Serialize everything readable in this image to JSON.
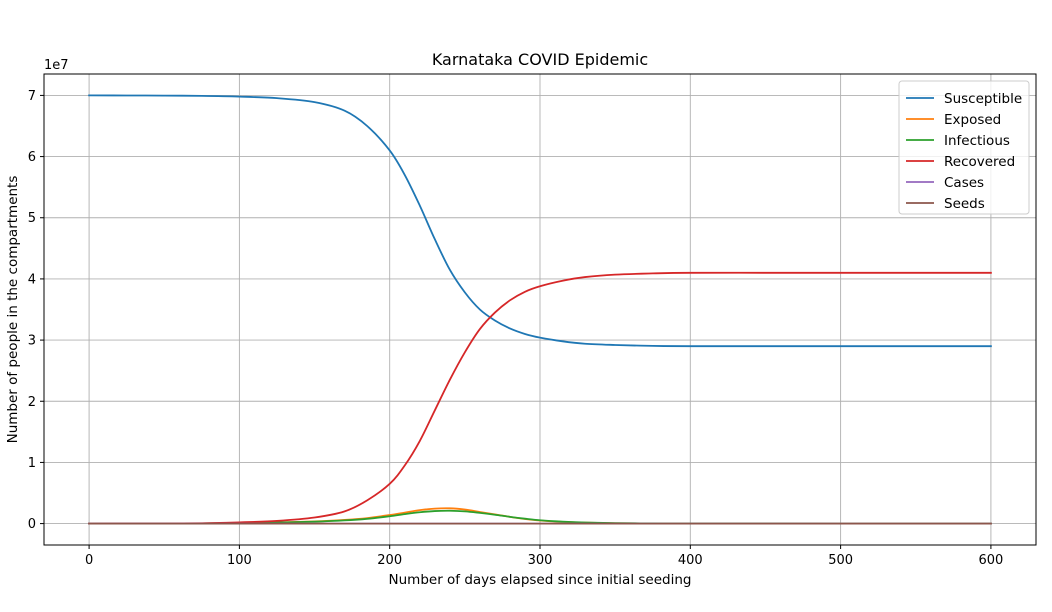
{
  "chart_data": {
    "type": "line",
    "title": "Karnataka COVID Epidemic",
    "xlabel": "Number of days elapsed since initial seeding",
    "ylabel": "Number of people in the compartments",
    "y_offset_label": "1e7",
    "y_scale": 10000000,
    "xlim": [
      -30,
      630
    ],
    "ylim": [
      -3500000,
      73500000
    ],
    "x_ticks": [
      0,
      100,
      200,
      300,
      400,
      500,
      600
    ],
    "x_tick_labels": [
      "0",
      "100",
      "200",
      "300",
      "400",
      "500",
      "600"
    ],
    "y_ticks": [
      0,
      10000000,
      20000000,
      30000000,
      40000000,
      50000000,
      60000000,
      70000000
    ],
    "y_tick_labels": [
      "0",
      "1",
      "2",
      "3",
      "4",
      "5",
      "6",
      "7"
    ],
    "grid": true,
    "legend_position": "top-right",
    "x": [
      0,
      25,
      50,
      75,
      100,
      125,
      150,
      170,
      185,
      200,
      210,
      220,
      230,
      240,
      250,
      260,
      270,
      280,
      290,
      300,
      315,
      330,
      350,
      375,
      400,
      450,
      500,
      550,
      600
    ],
    "series": [
      {
        "name": "Susceptible",
        "color": "#1f77b4",
        "values": [
          70000000,
          69990000,
          69970000,
          69920000,
          69800000,
          69550000,
          68900000,
          67500000,
          65000000,
          61000000,
          57000000,
          52000000,
          46500000,
          41500000,
          37800000,
          35000000,
          33200000,
          31900000,
          31000000,
          30400000,
          29800000,
          29400000,
          29200000,
          29050000,
          29000000,
          29000000,
          29000000,
          29000000,
          29000000
        ]
      },
      {
        "name": "Exposed",
        "color": "#ff7f0e",
        "values": [
          0,
          2000,
          10000,
          40000,
          100000,
          200000,
          350000,
          600000,
          900000,
          1400000,
          1800000,
          2200000,
          2450000,
          2500000,
          2300000,
          1900000,
          1500000,
          1100000,
          750000,
          500000,
          280000,
          150000,
          60000,
          20000,
          5000,
          1000,
          0,
          0,
          0
        ]
      },
      {
        "name": "Infectious",
        "color": "#2ca02c",
        "values": [
          0,
          2000,
          8000,
          30000,
          80000,
          170000,
          320000,
          520000,
          780000,
          1200000,
          1550000,
          1850000,
          2050000,
          2100000,
          2000000,
          1750000,
          1450000,
          1100000,
          800000,
          550000,
          320000,
          170000,
          70000,
          25000,
          6000,
          1000,
          0,
          0,
          0
        ]
      },
      {
        "name": "Recovered",
        "color": "#d62728",
        "values": [
          0,
          5000,
          20000,
          60000,
          200000,
          450000,
          1000000,
          2000000,
          3800000,
          6500000,
          9500000,
          13500000,
          18500000,
          23500000,
          28000000,
          31800000,
          34500000,
          36500000,
          37900000,
          38800000,
          39700000,
          40300000,
          40700000,
          40900000,
          41000000,
          41000000,
          41000000,
          41000000,
          41000000
        ]
      },
      {
        "name": "Cases",
        "color": "#9467bd",
        "values": [
          0,
          0,
          0,
          0,
          0,
          0,
          0,
          0,
          0,
          0,
          0,
          0,
          0,
          0,
          0,
          0,
          0,
          0,
          0,
          0,
          0,
          0,
          0,
          0,
          0,
          0,
          0,
          0,
          0
        ]
      },
      {
        "name": "Seeds",
        "color": "#8c564b",
        "values": [
          0,
          0,
          0,
          0,
          0,
          0,
          0,
          0,
          0,
          0,
          0,
          0,
          0,
          0,
          0,
          0,
          0,
          0,
          0,
          0,
          0,
          0,
          0,
          0,
          0,
          0,
          0,
          0,
          0
        ]
      }
    ]
  }
}
